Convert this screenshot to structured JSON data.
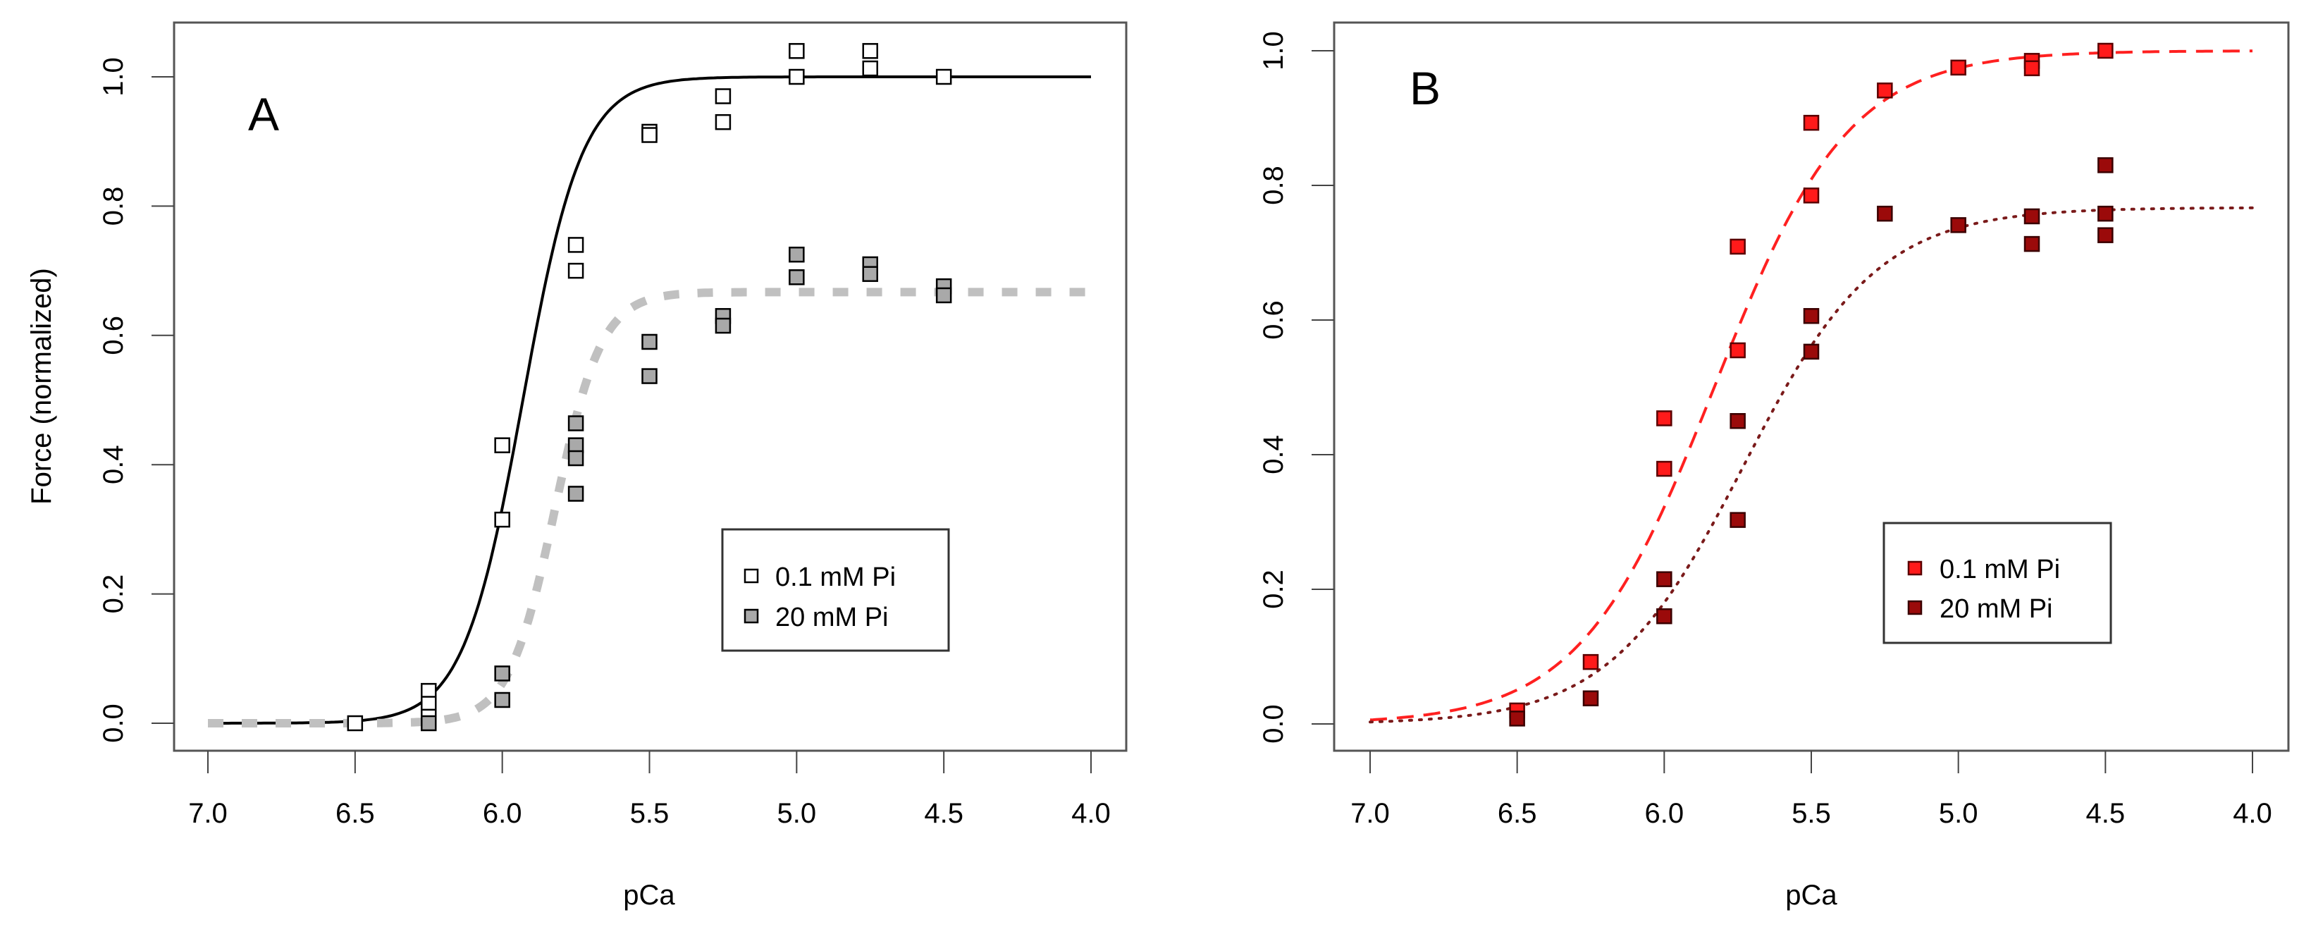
{
  "chart_data": [
    {
      "type": "scatter",
      "panel_label": "A",
      "xlabel": "pCa",
      "ylabel": "Force (normalized)",
      "xlim": [
        7.0,
        4.0
      ],
      "ylim": [
        0.0,
        1.0
      ],
      "x_reversed": true,
      "xticks": [
        "7.0",
        "6.5",
        "6.0",
        "5.5",
        "5.0",
        "4.5",
        "4.0"
      ],
      "yticks": [
        "0.0",
        "0.2",
        "0.4",
        "0.6",
        "0.8",
        "1.0"
      ],
      "grid": false,
      "legend_position": "bottom-right",
      "series": [
        {
          "name": "0.1 mM Pi",
          "marker": "open-square",
          "color": "#000000",
          "fill": "#ffffff",
          "line_style": "solid",
          "line_color": "#000000",
          "fit": {
            "max": 1.0,
            "pCa50": 5.93,
            "hill_n": 4.3
          },
          "points": [
            [
              6.5,
              0.0
            ],
            [
              6.25,
              0.05
            ],
            [
              6.25,
              0.03
            ],
            [
              6.25,
              0.01
            ],
            [
              6.0,
              0.43
            ],
            [
              6.0,
              0.315
            ],
            [
              5.75,
              0.74
            ],
            [
              5.75,
              0.7
            ],
            [
              5.5,
              0.915
            ],
            [
              5.5,
              0.91
            ],
            [
              5.25,
              0.97
            ],
            [
              5.25,
              0.93
            ],
            [
              5.0,
              1.04
            ],
            [
              5.0,
              1.0
            ],
            [
              4.75,
              1.04
            ],
            [
              4.75,
              1.013
            ],
            [
              4.5,
              1.0
            ]
          ]
        },
        {
          "name": "20 mM Pi",
          "marker": "filled-square",
          "color": "#000000",
          "fill": "#a9a9a9",
          "line_style": "dashed",
          "line_color": "#c0c0c0",
          "fit": {
            "max": 0.667,
            "pCa50": 5.82,
            "hill_n": 5.5
          },
          "points": [
            [
              6.25,
              0.0
            ],
            [
              6.0,
              0.077
            ],
            [
              6.0,
              0.036
            ],
            [
              5.75,
              0.464
            ],
            [
              5.75,
              0.43
            ],
            [
              5.75,
              0.41
            ],
            [
              5.75,
              0.355
            ],
            [
              5.5,
              0.59
            ],
            [
              5.5,
              0.537
            ],
            [
              5.25,
              0.63
            ],
            [
              5.25,
              0.615
            ],
            [
              5.0,
              0.725
            ],
            [
              5.0,
              0.69
            ],
            [
              4.75,
              0.71
            ],
            [
              4.75,
              0.695
            ],
            [
              4.5,
              0.676
            ],
            [
              4.5,
              0.662
            ]
          ]
        }
      ]
    },
    {
      "type": "scatter",
      "panel_label": "B",
      "xlabel": "pCa",
      "ylabel": "",
      "xlim": [
        7.0,
        4.0
      ],
      "ylim": [
        0.0,
        1.0
      ],
      "x_reversed": true,
      "xticks": [
        "7.0",
        "6.5",
        "6.0",
        "5.5",
        "5.0",
        "4.5",
        "4.0"
      ],
      "yticks": [
        "0.0",
        "0.2",
        "0.4",
        "0.6",
        "0.8",
        "1.0"
      ],
      "grid": false,
      "legend_position": "bottom-right",
      "series": [
        {
          "name": "0.1 mM Pi",
          "marker": "filled-square",
          "color": "#5a0000",
          "fill": "#ff1a1a",
          "line_style": "dashed",
          "line_color": "#ff2020",
          "fit": {
            "max": 1.0,
            "pCa50": 5.83,
            "hill_n": 1.9
          },
          "points": [
            [
              6.5,
              0.02
            ],
            [
              6.25,
              0.092
            ],
            [
              6.0,
              0.454
            ],
            [
              6.0,
              0.379
            ],
            [
              5.75,
              0.709
            ],
            [
              5.75,
              0.555
            ],
            [
              5.5,
              0.893
            ],
            [
              5.5,
              0.785
            ],
            [
              5.25,
              0.941
            ],
            [
              5.0,
              0.975
            ],
            [
              4.75,
              0.985
            ],
            [
              4.75,
              0.974
            ],
            [
              4.5,
              1.0
            ]
          ]
        },
        {
          "name": "20 mM Pi",
          "marker": "filled-square",
          "color": "#3a0000",
          "fill": "#9b0a0a",
          "line_style": "dotted",
          "line_color": "#7a1a1a",
          "fit": {
            "max": 0.767,
            "pCa50": 5.73,
            "hill_n": 1.9
          },
          "points": [
            [
              6.5,
              0.008
            ],
            [
              6.25,
              0.038
            ],
            [
              6.0,
              0.215
            ],
            [
              6.0,
              0.16
            ],
            [
              5.75,
              0.45
            ],
            [
              5.75,
              0.303
            ],
            [
              5.5,
              0.606
            ],
            [
              5.5,
              0.553
            ],
            [
              5.25,
              0.758
            ],
            [
              5.0,
              0.741
            ],
            [
              4.75,
              0.754
            ],
            [
              4.75,
              0.713
            ],
            [
              4.5,
              0.83
            ],
            [
              4.5,
              0.758
            ],
            [
              4.5,
              0.726
            ]
          ]
        }
      ]
    }
  ]
}
